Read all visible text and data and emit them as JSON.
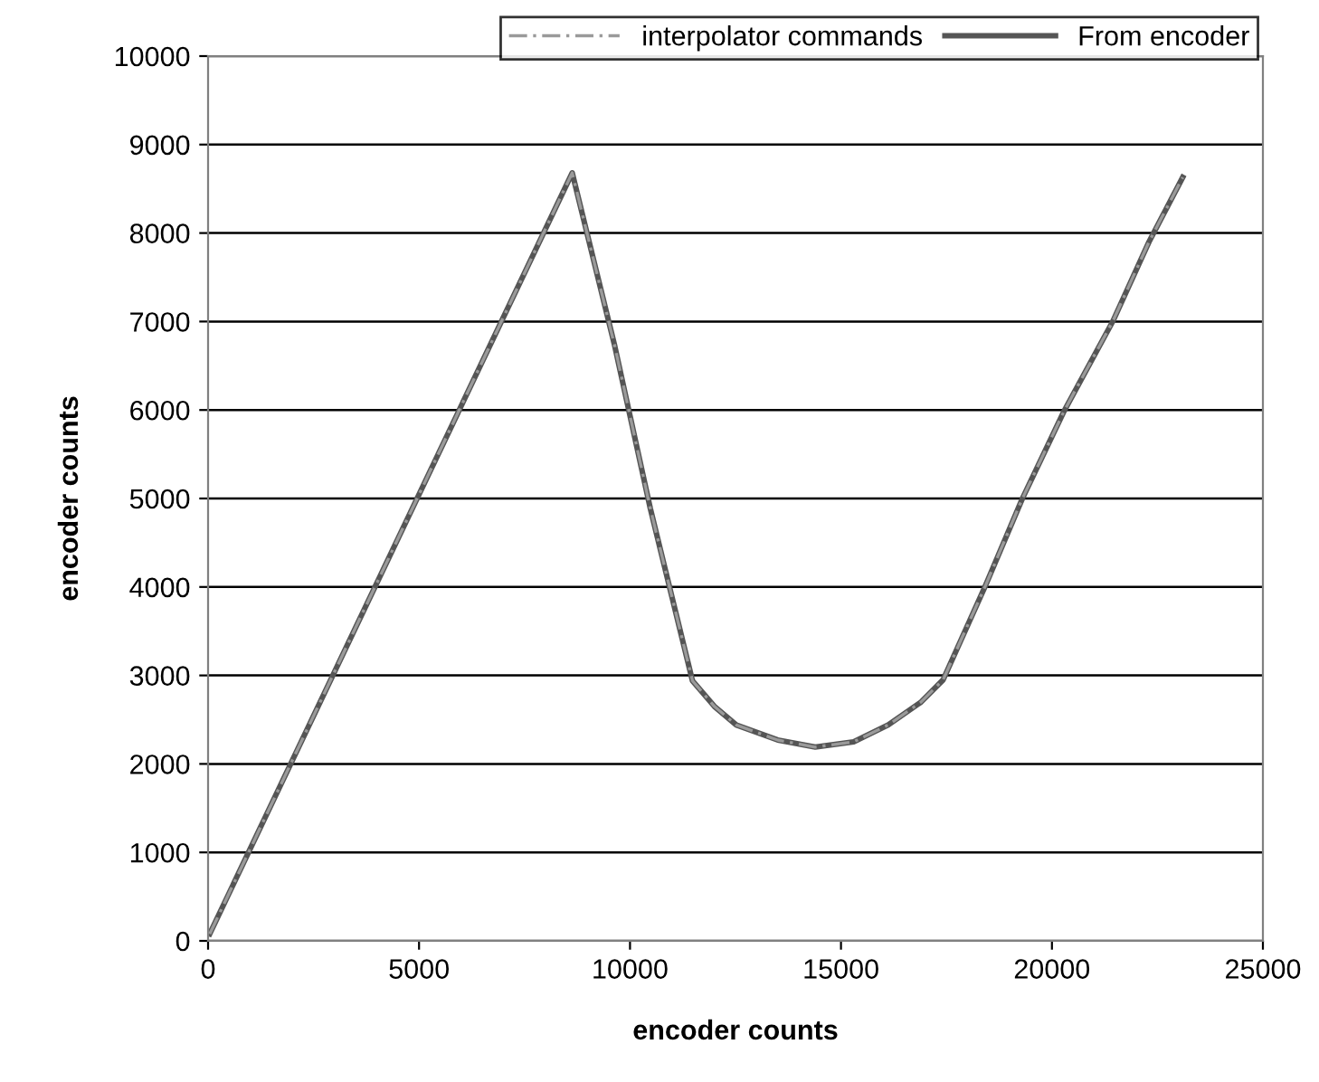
{
  "chart_data": {
    "type": "line",
    "xlabel": "encoder counts",
    "ylabel": "encoder counts",
    "xlim": [
      0,
      25000
    ],
    "xticks": [
      0,
      5000,
      10000,
      15000,
      20000,
      25000
    ],
    "ylim": [
      0,
      10000
    ],
    "yticks": [
      0,
      1000,
      2000,
      3000,
      4000,
      5000,
      6000,
      7000,
      8000,
      9000,
      10000
    ],
    "grid": "y",
    "legend": "top",
    "marker": "none",
    "series": [
      {
        "name": "interpolator commands",
        "color": "#9a9a9a",
        "line_style": "dashed",
        "x": [
          40,
          8630,
          9640,
          10480,
          11480,
          12000,
          12520,
          13500,
          14390,
          15300,
          16120,
          16900,
          17420,
          18420,
          19300,
          20290,
          21440,
          22300,
          23100
        ],
        "values": [
          80,
          8680,
          6720,
          4890,
          2940,
          2650,
          2440,
          2270,
          2190,
          2250,
          2440,
          2700,
          2950,
          4010,
          5000,
          5990,
          7000,
          7900,
          8630
        ]
      },
      {
        "name": "From encoder",
        "color": "#555555",
        "line_style": "solid",
        "x": [
          40,
          8630,
          9640,
          10480,
          11480,
          12000,
          12520,
          13500,
          14390,
          15300,
          16120,
          16900,
          17420,
          18420,
          19300,
          20290,
          21440,
          22300,
          23100
        ],
        "values": [
          80,
          8680,
          6720,
          4890,
          2940,
          2650,
          2440,
          2270,
          2190,
          2250,
          2440,
          2700,
          2950,
          4010,
          5000,
          5990,
          7000,
          7900,
          8630
        ]
      }
    ]
  }
}
